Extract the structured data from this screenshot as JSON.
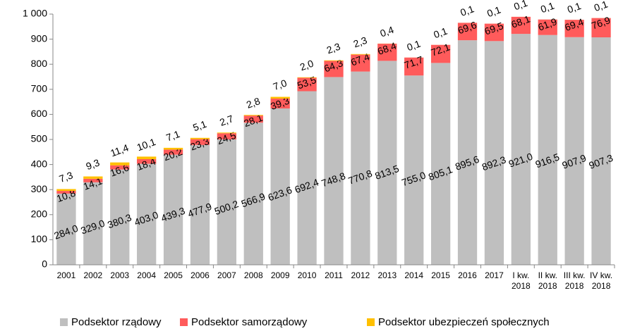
{
  "chart_data": {
    "type": "stacked_bar",
    "categories": [
      "2001",
      "2002",
      "2003",
      "2004",
      "2005",
      "2006",
      "2007",
      "2008",
      "2009",
      "2010",
      "2011",
      "2012",
      "2013",
      "2014",
      "2015",
      "2016",
      "2017",
      "I kw. 2018",
      "II kw. 2018",
      "III kw. 2018",
      "IV kw. 2018"
    ],
    "series": [
      {
        "name": "Podsektor rządowy",
        "color": "#bfbfbf",
        "values": [
          284.0,
          329.0,
          380.3,
          403.0,
          439.3,
          477.9,
          500.2,
          566.9,
          623.6,
          692.4,
          748.8,
          770.8,
          813.5,
          755.0,
          805.1,
          895.6,
          892.3,
          921.0,
          916.5,
          907.9,
          907.3
        ],
        "value_labels": [
          "284,0",
          "329,0",
          "380,3",
          "403,0",
          "439,3",
          "477,9",
          "500,2",
          "566,9",
          "623,6",
          "692,4",
          "748,8",
          "770,8",
          "813,5",
          "755,0",
          "805,1",
          "895,6",
          "892,3",
          "921,0",
          "916,5",
          "907,9",
          "907,3"
        ]
      },
      {
        "name": "Podsektor samorządowy",
        "color": "#ff5b5b",
        "values": [
          10.8,
          14.1,
          16.6,
          18.4,
          20.2,
          23.3,
          24.5,
          28.1,
          39.3,
          53.5,
          64.3,
          67.4,
          68.4,
          71.7,
          72.1,
          69.6,
          69.5,
          68.1,
          61.9,
          69.4,
          76.9
        ],
        "value_labels": [
          "10,8",
          "14,1",
          "16,6",
          "18,4",
          "20,2",
          "23,3",
          "24,5",
          "28,1",
          "39,3",
          "53,5",
          "64,3",
          "67,4",
          "68,4",
          "71,7",
          "72,1",
          "69,6",
          "69,5",
          "68,1",
          "61,9",
          "69,4",
          "76,9"
        ]
      },
      {
        "name": "Podsektor ubezpieczeń społecznych",
        "color": "#ffc000",
        "values": [
          7.3,
          9.3,
          11.4,
          10.1,
          7.1,
          5.1,
          2.7,
          2.8,
          7.0,
          2.0,
          2.3,
          2.3,
          0.4,
          0.1,
          0.1,
          0.1,
          0.1,
          0.1,
          0.1,
          0.1,
          0.1
        ],
        "value_labels": [
          "7,3",
          "9,3",
          "11,4",
          "10,1",
          "7,1",
          "5,1",
          "2,7",
          "2,8",
          "7,0",
          "2,0",
          "2,3",
          "2,3",
          "0,4",
          "0,1",
          "0,1",
          "0,1",
          "0,1",
          "0,1",
          "0,1",
          "0,1",
          "0,1"
        ]
      }
    ],
    "ylim": [
      0,
      1000
    ],
    "yticks": [
      0,
      100,
      200,
      300,
      400,
      500,
      600,
      700,
      800,
      900,
      {
        "value": 1000,
        "label": "1 000"
      }
    ],
    "legend": "bottom"
  }
}
